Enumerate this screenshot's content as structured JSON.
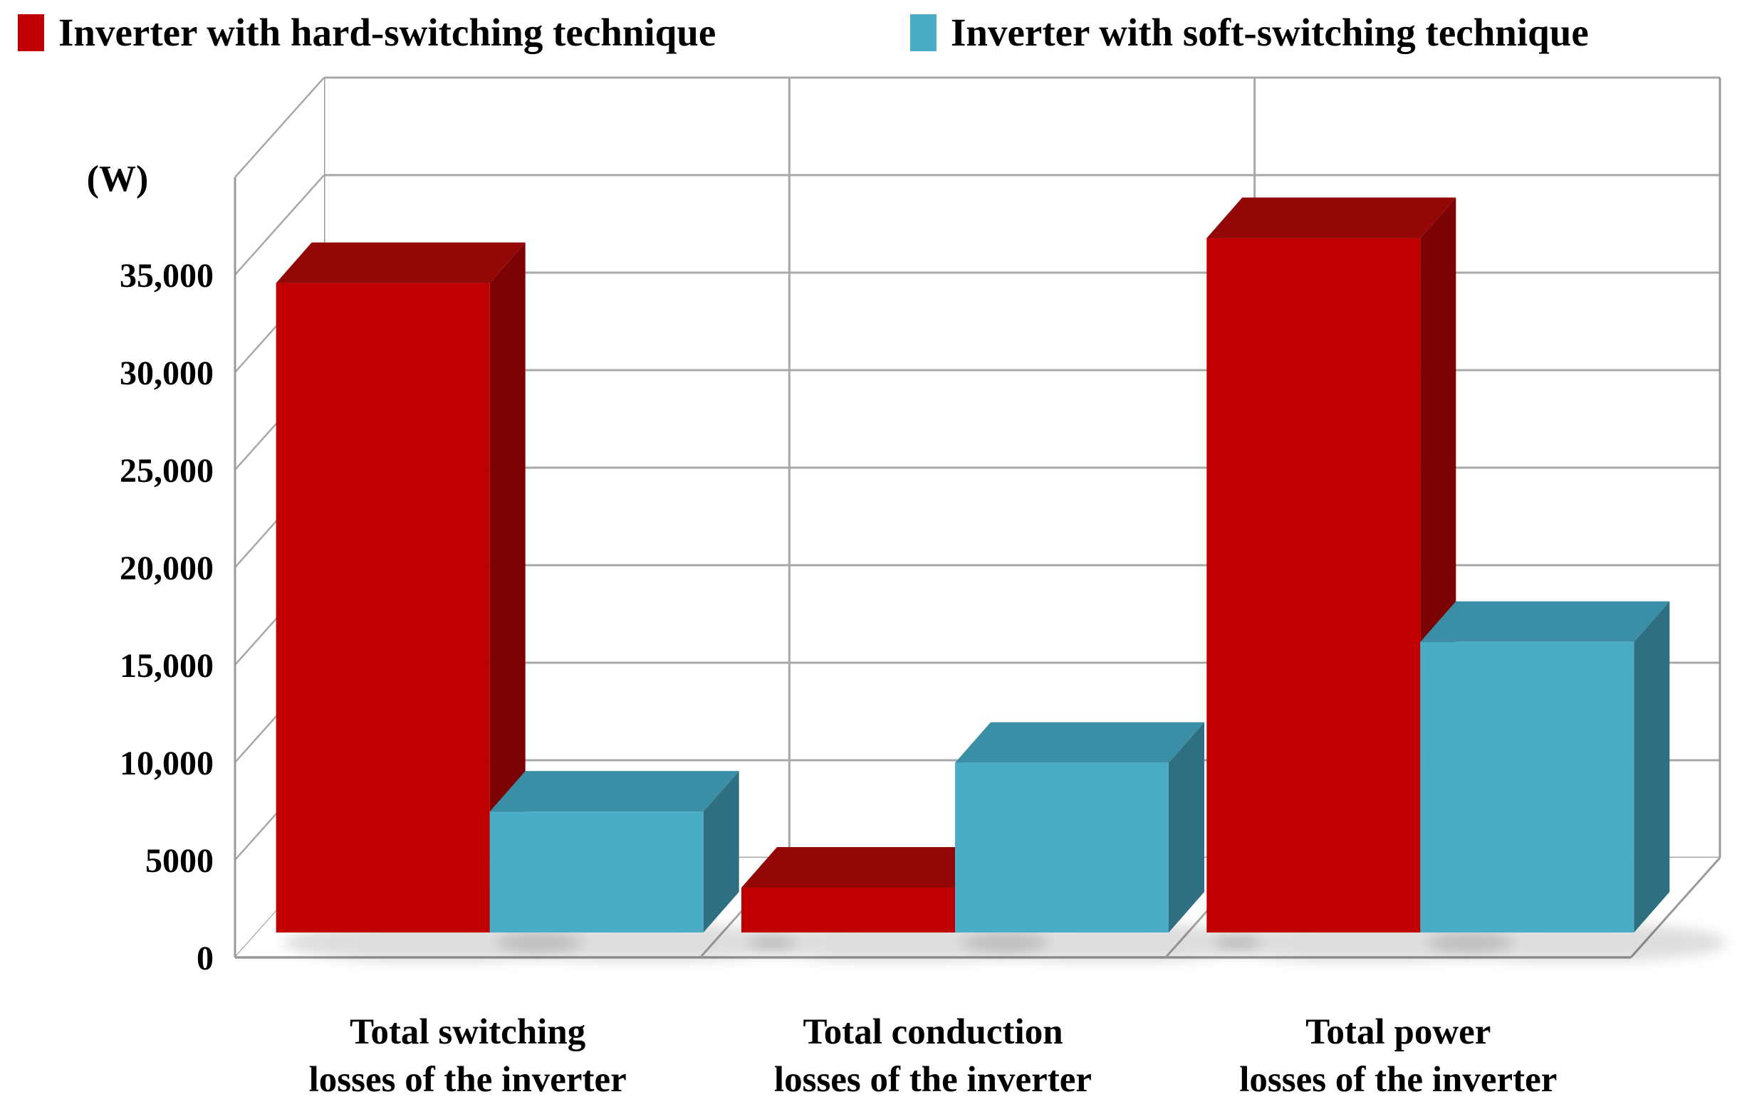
{
  "legend": {
    "items": [
      {
        "label": "Inverter with hard-switching technique",
        "color": "#C00000"
      },
      {
        "label": "Inverter with soft-switching technique",
        "color": "#4BACC6"
      }
    ],
    "position": "top"
  },
  "chart_data": {
    "type": "bar",
    "projection": "3d-column",
    "title": "",
    "xlabel": "",
    "ylabel": "(W)",
    "ylim": [
      0,
      40000
    ],
    "ytick_step": 5000,
    "ytick_labels": [
      "0",
      "5000",
      "10,000",
      "15,000",
      "20,000",
      "25,000",
      "30,000",
      "35,000"
    ],
    "grid": true,
    "legend_position": "top",
    "categories": [
      "Total switching losses of the inverter",
      "Total conduction losses of the inverter",
      "Total power losses of the inverter"
    ],
    "category_lines": [
      [
        "Total switching",
        "losses of the inverter"
      ],
      [
        "Total conduction",
        "losses of the inverter"
      ],
      [
        "Total power",
        "losses of the inverter"
      ]
    ],
    "series": [
      {
        "name": "Inverter with hard-switching technique",
        "color": "#C00000",
        "color_top": "#940707",
        "color_side": "#7C0303",
        "values": [
          33300,
          2300,
          35600
        ]
      },
      {
        "name": "Inverter with soft-switching technique",
        "color": "#4BACC6",
        "color_top": "#3A8FA6",
        "color_side": "#2F6F82",
        "values": [
          6200,
          8700,
          14900
        ]
      }
    ]
  }
}
